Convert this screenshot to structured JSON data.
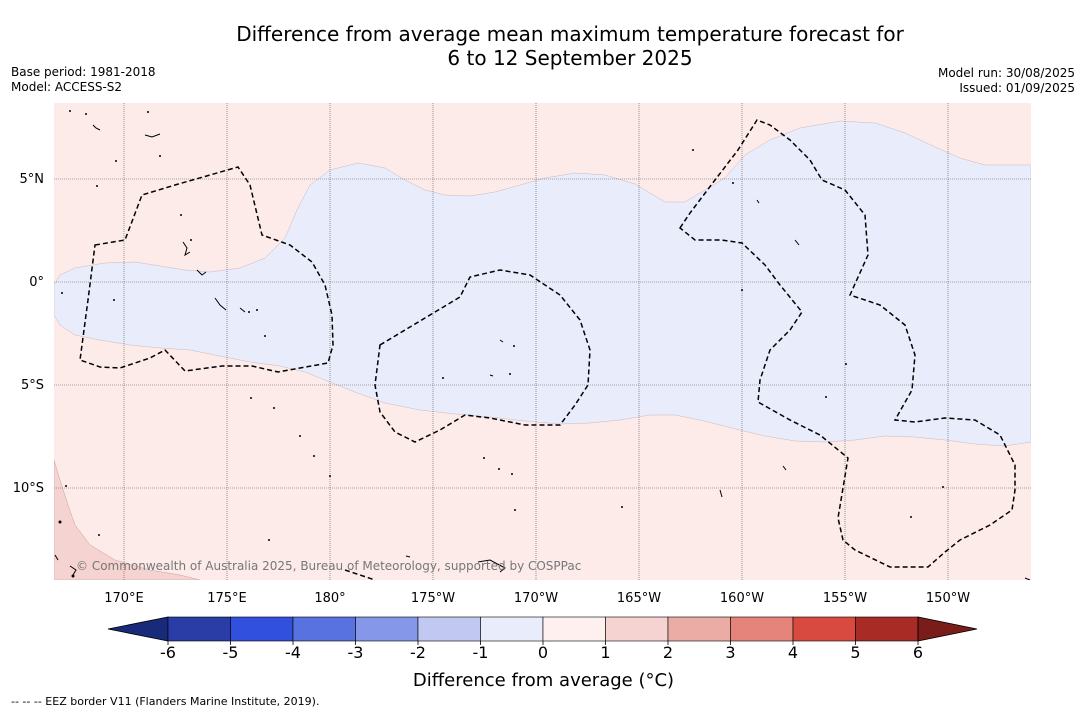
{
  "title_line1": "Difference from average mean maximum temperature forecast for",
  "title_line2": "6 to 12 September 2025",
  "base_period": "Base period: 1981-2018",
  "model": "Model: ACCESS-S2",
  "model_run": "Model run: 30/08/2025",
  "issued": "Issued: 01/09/2025",
  "copyright": "© Commonwealth of Australia 2025, Bureau of Meteorology, supported by COSPPac",
  "lon_ticks": [
    "170°E",
    "175°E",
    "180°",
    "175°W",
    "170°W",
    "165°W",
    "160°W",
    "155°W",
    "150°W"
  ],
  "lat_ticks": [
    "5°N",
    "0°",
    "5°S",
    "10°S"
  ],
  "colorbar": {
    "title": "Difference from average (°C)",
    "ticks": [
      "-6",
      "-5",
      "-4",
      "-3",
      "-2",
      "-1",
      "0",
      "1",
      "2",
      "3",
      "4",
      "5",
      "6"
    ],
    "colors": [
      "#2a3da6",
      "#3250de",
      "#5873e0",
      "#8497e8",
      "#c1c8f2",
      "#e9ecfb",
      "#fdf0ef",
      "#f4d3d0",
      "#ebaca5",
      "#e5847b",
      "#d84a3f",
      "#a82b26"
    ],
    "low_extend_color": "#1a2a7a",
    "high_extend_color": "#7a1c1a"
  },
  "legend_note": "--  --  -- EEZ border V11 (Flanders Marine Institute, 2019).",
  "map_colors": {
    "warm_0_1": "#fcebe9",
    "cool_0_1": "#e9ecfb",
    "warm_1_2": "#f4d3d0"
  }
}
